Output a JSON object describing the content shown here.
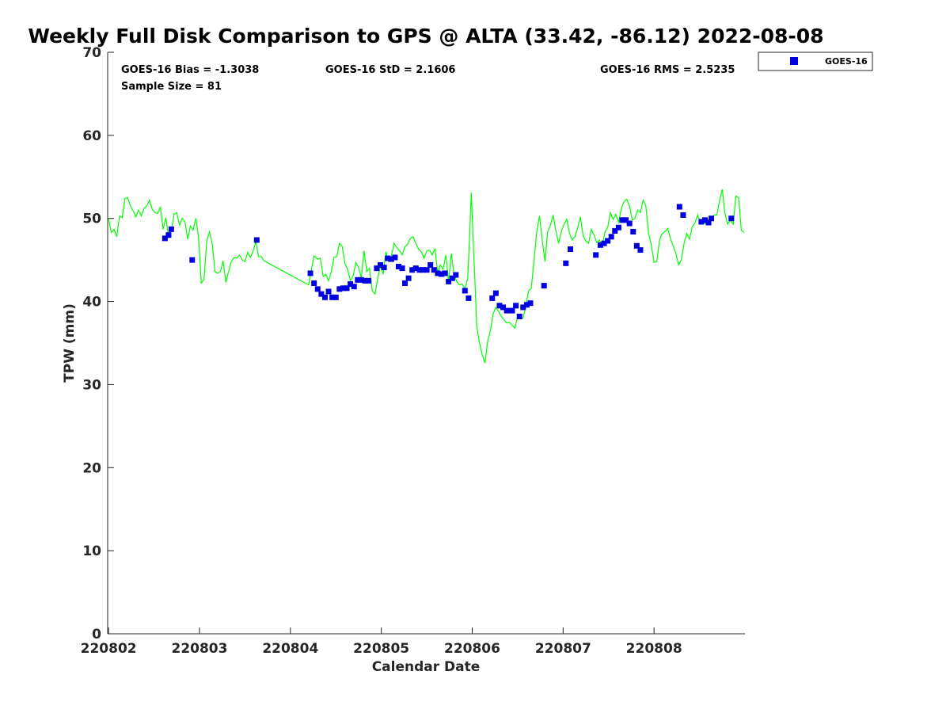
{
  "chart_data": {
    "type": "scatter",
    "title": "Weekly Full Disk Comparison to GPS @ ALTA (33.42, -86.12) 2022-08-08",
    "xlabel": "Calendar Date",
    "ylabel": "TPW (mm)",
    "ylim": [
      0,
      70
    ],
    "xlim": [
      -0.01,
      7.0
    ],
    "y_ticks": [
      "0",
      "10",
      "20",
      "30",
      "40",
      "50",
      "60",
      "70"
    ],
    "x_ticks": [
      {
        "label": "220802",
        "x": 0
      },
      {
        "label": "220803",
        "x": 1
      },
      {
        "label": "220804",
        "x": 2
      },
      {
        "label": "220805",
        "x": 3
      },
      {
        "label": "220806",
        "x": 4
      },
      {
        "label": "220807",
        "x": 5
      },
      {
        "label": "220808",
        "x": 6
      }
    ],
    "grid": false,
    "stats": {
      "bias": "GOES-16 Bias = -1.3038",
      "std": "GOES-16 StD = 2.1606",
      "rms": "GOES-16 RMS = 2.5235",
      "sample": "Sample Size = 81"
    },
    "legend": {
      "position": "top-right",
      "entries": [
        {
          "label": "GOES-16",
          "color": "#0000e0"
        }
      ]
    },
    "series": [
      {
        "name": "GOES-16",
        "kind": "markers",
        "color": "#0000e0",
        "points": [
          [
            0.62,
            47.6
          ],
          [
            0.66,
            48.0
          ],
          [
            0.69,
            48.7
          ],
          [
            0.92,
            45.0
          ],
          [
            1.63,
            47.4
          ],
          [
            2.22,
            43.4
          ],
          [
            2.26,
            42.2
          ],
          [
            2.3,
            41.5
          ],
          [
            2.34,
            40.9
          ],
          [
            2.38,
            40.5
          ],
          [
            2.42,
            41.2
          ],
          [
            2.46,
            40.5
          ],
          [
            2.5,
            40.5
          ],
          [
            2.54,
            41.5
          ],
          [
            2.58,
            41.6
          ],
          [
            2.62,
            41.6
          ],
          [
            2.66,
            42.1
          ],
          [
            2.7,
            41.8
          ],
          [
            2.74,
            42.6
          ],
          [
            2.78,
            42.6
          ],
          [
            2.82,
            42.5
          ],
          [
            2.86,
            42.5
          ],
          [
            2.95,
            44.0
          ],
          [
            2.99,
            44.4
          ],
          [
            3.03,
            44.1
          ],
          [
            3.07,
            45.2
          ],
          [
            3.11,
            45.1
          ],
          [
            3.15,
            45.3
          ],
          [
            3.19,
            44.2
          ],
          [
            3.23,
            44.0
          ],
          [
            3.26,
            42.2
          ],
          [
            3.3,
            42.8
          ],
          [
            3.34,
            43.8
          ],
          [
            3.38,
            44.0
          ],
          [
            3.42,
            43.8
          ],
          [
            3.46,
            43.8
          ],
          [
            3.5,
            43.8
          ],
          [
            3.54,
            44.4
          ],
          [
            3.58,
            43.8
          ],
          [
            3.62,
            43.4
          ],
          [
            3.66,
            43.3
          ],
          [
            3.7,
            43.4
          ],
          [
            3.74,
            42.4
          ],
          [
            3.78,
            42.8
          ],
          [
            3.82,
            43.2
          ],
          [
            3.92,
            41.3
          ],
          [
            3.96,
            40.4
          ],
          [
            4.22,
            40.4
          ],
          [
            4.26,
            41.0
          ],
          [
            4.3,
            39.5
          ],
          [
            4.34,
            39.3
          ],
          [
            4.38,
            38.9
          ],
          [
            4.44,
            38.9
          ],
          [
            4.48,
            39.5
          ],
          [
            4.52,
            38.2
          ],
          [
            4.56,
            39.3
          ],
          [
            4.6,
            39.6
          ],
          [
            4.64,
            39.8
          ],
          [
            4.79,
            41.9
          ],
          [
            5.03,
            44.6
          ],
          [
            5.08,
            46.3
          ],
          [
            5.36,
            45.6
          ],
          [
            5.41,
            46.8
          ],
          [
            5.45,
            47.0
          ],
          [
            5.49,
            47.3
          ],
          [
            5.53,
            47.8
          ],
          [
            5.57,
            48.5
          ],
          [
            5.61,
            48.9
          ],
          [
            5.65,
            49.8
          ],
          [
            5.69,
            49.8
          ],
          [
            5.73,
            49.4
          ],
          [
            5.77,
            48.4
          ],
          [
            5.81,
            46.7
          ],
          [
            5.85,
            46.2
          ],
          [
            6.28,
            51.4
          ],
          [
            6.32,
            50.4
          ],
          [
            6.52,
            49.6
          ],
          [
            6.56,
            49.8
          ],
          [
            6.6,
            49.5
          ],
          [
            6.63,
            50.0
          ],
          [
            6.85,
            50.0
          ]
        ]
      },
      {
        "kind": "line",
        "color": "#00ff00",
        "points": [
          [
            0.0,
            50.0
          ],
          [
            0.03,
            48.3
          ],
          [
            0.06,
            48.7
          ],
          [
            0.09,
            47.8
          ],
          [
            0.12,
            50.3
          ],
          [
            0.15,
            50.1
          ],
          [
            0.18,
            52.4
          ],
          [
            0.21,
            52.5
          ],
          [
            0.24,
            51.5
          ],
          [
            0.27,
            50.9
          ],
          [
            0.3,
            50.2
          ],
          [
            0.33,
            51.0
          ],
          [
            0.36,
            50.3
          ],
          [
            0.39,
            51.2
          ],
          [
            0.42,
            51.5
          ],
          [
            0.45,
            52.2
          ],
          [
            0.48,
            51.1
          ],
          [
            0.51,
            50.7
          ],
          [
            0.54,
            50.6
          ],
          [
            0.57,
            51.4
          ],
          [
            0.6,
            48.7
          ],
          [
            0.63,
            50.1
          ],
          [
            0.66,
            47.7
          ],
          [
            0.69,
            48.4
          ],
          [
            0.72,
            50.5
          ],
          [
            0.75,
            50.7
          ],
          [
            0.78,
            49.2
          ],
          [
            0.81,
            50.0
          ],
          [
            0.84,
            49.6
          ],
          [
            0.87,
            47.5
          ],
          [
            0.9,
            49.1
          ],
          [
            0.93,
            48.6
          ],
          [
            0.96,
            50.0
          ],
          [
            0.99,
            47.7
          ],
          [
            1.02,
            42.2
          ],
          [
            1.05,
            42.7
          ],
          [
            1.08,
            47.3
          ],
          [
            1.11,
            48.4
          ],
          [
            1.14,
            46.9
          ],
          [
            1.17,
            43.6
          ],
          [
            1.2,
            43.4
          ],
          [
            1.23,
            43.6
          ],
          [
            1.26,
            44.9
          ],
          [
            1.29,
            42.3
          ],
          [
            1.32,
            43.6
          ],
          [
            1.35,
            44.8
          ],
          [
            1.38,
            45.3
          ],
          [
            1.41,
            45.2
          ],
          [
            1.44,
            45.6
          ],
          [
            1.47,
            45.0
          ],
          [
            1.5,
            44.8
          ],
          [
            1.53,
            45.9
          ],
          [
            1.56,
            45.3
          ],
          [
            1.59,
            46.1
          ],
          [
            1.62,
            47.2
          ],
          [
            1.65,
            45.4
          ],
          [
            1.68,
            45.4
          ],
          [
            1.71,
            44.9
          ],
          [
            2.2,
            42.0
          ],
          [
            2.23,
            43.8
          ],
          [
            2.26,
            45.5
          ],
          [
            2.3,
            45.1
          ],
          [
            2.33,
            45.2
          ],
          [
            2.36,
            43.0
          ],
          [
            2.39,
            43.3
          ],
          [
            2.42,
            42.5
          ],
          [
            2.45,
            43.6
          ],
          [
            2.48,
            45.3
          ],
          [
            2.51,
            45.4
          ],
          [
            2.54,
            47.0
          ],
          [
            2.57,
            46.6
          ],
          [
            2.6,
            44.6
          ],
          [
            2.63,
            43.8
          ],
          [
            2.66,
            42.5
          ],
          [
            2.69,
            43.1
          ],
          [
            2.72,
            44.7
          ],
          [
            2.75,
            44.1
          ],
          [
            2.78,
            42.9
          ],
          [
            2.81,
            46.1
          ],
          [
            2.84,
            43.6
          ],
          [
            2.87,
            44.0
          ],
          [
            2.9,
            41.3
          ],
          [
            2.93,
            40.9
          ],
          [
            2.96,
            42.8
          ],
          [
            2.99,
            44.2
          ],
          [
            3.02,
            43.3
          ],
          [
            3.05,
            46.0
          ],
          [
            3.08,
            44.8
          ],
          [
            3.11,
            45.4
          ],
          [
            3.14,
            47.0
          ],
          [
            3.17,
            46.5
          ],
          [
            3.2,
            46.1
          ],
          [
            3.23,
            45.6
          ],
          [
            3.26,
            46.6
          ],
          [
            3.29,
            46.9
          ],
          [
            3.32,
            47.6
          ],
          [
            3.35,
            47.8
          ],
          [
            3.38,
            47.0
          ],
          [
            3.41,
            46.3
          ],
          [
            3.44,
            46.0
          ],
          [
            3.47,
            45.2
          ],
          [
            3.5,
            46.1
          ],
          [
            3.53,
            46.2
          ],
          [
            3.56,
            45.6
          ],
          [
            3.59,
            46.4
          ],
          [
            3.62,
            43.4
          ],
          [
            3.65,
            44.4
          ],
          [
            3.68,
            43.9
          ],
          [
            3.71,
            45.6
          ],
          [
            3.74,
            42.4
          ],
          [
            3.77,
            45.8
          ],
          [
            3.8,
            43.2
          ],
          [
            3.83,
            42.4
          ],
          [
            3.86,
            42.0
          ],
          [
            3.89,
            42.1
          ],
          [
            3.92,
            41.5
          ],
          [
            3.95,
            42.8
          ],
          [
            3.97,
            47.5
          ],
          [
            3.99,
            53.1
          ],
          [
            4.01,
            47.6
          ],
          [
            4.03,
            42.5
          ],
          [
            4.05,
            37.0
          ],
          [
            4.08,
            35.0
          ],
          [
            4.11,
            33.6
          ],
          [
            4.14,
            32.6
          ],
          [
            4.17,
            35.2
          ],
          [
            4.2,
            36.5
          ],
          [
            4.23,
            38.5
          ],
          [
            4.26,
            39.3
          ],
          [
            4.29,
            38.8
          ],
          [
            4.32,
            38.2
          ],
          [
            4.35,
            37.8
          ],
          [
            4.38,
            37.4
          ],
          [
            4.41,
            37.5
          ],
          [
            4.44,
            37.1
          ],
          [
            4.47,
            36.8
          ],
          [
            4.5,
            38.2
          ],
          [
            4.53,
            37.9
          ],
          [
            4.56,
            38.0
          ],
          [
            4.59,
            39.5
          ],
          [
            4.62,
            41.3
          ],
          [
            4.65,
            41.6
          ],
          [
            4.68,
            45.0
          ],
          [
            4.71,
            48.4
          ],
          [
            4.74,
            50.3
          ],
          [
            4.77,
            47.4
          ],
          [
            4.8,
            44.8
          ],
          [
            4.83,
            48.4
          ],
          [
            4.86,
            49.2
          ],
          [
            4.89,
            50.4
          ],
          [
            4.92,
            48.5
          ],
          [
            4.95,
            47.0
          ],
          [
            4.98,
            48.4
          ],
          [
            5.01,
            49.3
          ],
          [
            5.04,
            49.9
          ],
          [
            5.07,
            48.2
          ],
          [
            5.1,
            47.4
          ],
          [
            5.13,
            47.8
          ],
          [
            5.16,
            48.9
          ],
          [
            5.19,
            50.2
          ],
          [
            5.22,
            47.9
          ],
          [
            5.25,
            47.3
          ],
          [
            5.28,
            47.0
          ],
          [
            5.31,
            48.7
          ],
          [
            5.34,
            48.0
          ],
          [
            5.37,
            47.1
          ],
          [
            5.4,
            47.4
          ],
          [
            5.43,
            46.7
          ],
          [
            5.46,
            48.4
          ],
          [
            5.49,
            48.9
          ],
          [
            5.52,
            50.7
          ],
          [
            5.55,
            49.9
          ],
          [
            5.58,
            50.5
          ],
          [
            5.61,
            49.5
          ],
          [
            5.64,
            51.2
          ],
          [
            5.67,
            52.0
          ],
          [
            5.7,
            52.3
          ],
          [
            5.73,
            51.5
          ],
          [
            5.76,
            49.8
          ],
          [
            5.79,
            50.0
          ],
          [
            5.82,
            51.0
          ],
          [
            5.85,
            50.7
          ],
          [
            5.88,
            52.2
          ],
          [
            5.91,
            51.5
          ],
          [
            5.94,
            48.2
          ],
          [
            5.97,
            46.8
          ],
          [
            6.0,
            44.7
          ],
          [
            6.03,
            44.8
          ],
          [
            6.06,
            47.4
          ],
          [
            6.09,
            48.2
          ],
          [
            6.12,
            48.4
          ],
          [
            6.15,
            48.8
          ],
          [
            6.18,
            47.6
          ],
          [
            6.21,
            46.7
          ],
          [
            6.24,
            45.8
          ],
          [
            6.27,
            44.4
          ],
          [
            6.3,
            45.0
          ],
          [
            6.33,
            47.0
          ],
          [
            6.36,
            48.2
          ],
          [
            6.39,
            47.5
          ],
          [
            6.42,
            49.0
          ],
          [
            6.45,
            49.4
          ],
          [
            6.48,
            50.4
          ],
          [
            6.51,
            49.3
          ],
          [
            6.54,
            49.8
          ],
          [
            6.57,
            49.3
          ],
          [
            6.6,
            49.9
          ],
          [
            6.63,
            49.8
          ],
          [
            6.66,
            50.4
          ],
          [
            6.69,
            50.4
          ],
          [
            6.72,
            52.1
          ],
          [
            6.75,
            53.5
          ],
          [
            6.78,
            50.6
          ],
          [
            6.81,
            49.3
          ],
          [
            6.84,
            49.8
          ],
          [
            6.87,
            49.3
          ],
          [
            6.9,
            52.7
          ],
          [
            6.93,
            52.5
          ],
          [
            6.96,
            48.6
          ],
          [
            6.99,
            48.3
          ]
        ]
      }
    ]
  }
}
